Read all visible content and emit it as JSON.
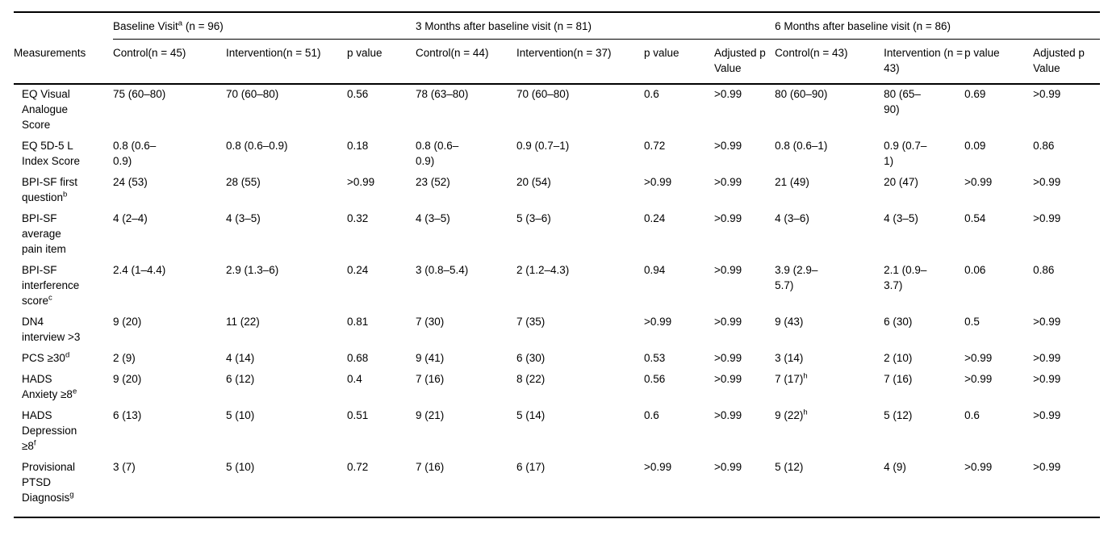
{
  "table": {
    "group_headers": [
      "Baseline Visit^a (n = 96)",
      "3 Months after baseline visit (n = 81)",
      "6 Months after baseline visit (n = 86)"
    ],
    "columns": [
      "Measurements",
      "Control(n = 45)",
      "Intervention(n = 51)",
      "p value",
      "Control(n = 44)",
      "Intervention(n = 37)",
      "p value",
      "Adjusted p Value",
      "Control(n = 43)",
      "Intervention (n = 43)",
      "p value",
      "Adjusted p Value"
    ],
    "rows": [
      {
        "measurement": "EQ Visual Analogue Score",
        "values": [
          "75 (60–80)",
          "70 (60–80)",
          "0.56",
          "78 (63–80)",
          "70 (60–80)",
          "0.6",
          ">0.99",
          "80 (60–90)",
          "80 (65–90)",
          "0.69",
          ">0.99"
        ]
      },
      {
        "measurement": "EQ 5D-5 L Index Score",
        "values": [
          "0.8 (0.6–0.9)",
          "0.8 (0.6–0.9)",
          "0.18",
          "0.8 (0.6–0.9)",
          "0.9 (0.7–1)",
          "0.72",
          ">0.99",
          "0.8 (0.6–1)",
          "0.9 (0.7–1)",
          "0.09",
          "0.86"
        ]
      },
      {
        "measurement": "BPI-SF first question^b",
        "values": [
          "24 (53)",
          "28 (55)",
          ">0.99",
          "23 (52)",
          "20 (54)",
          ">0.99",
          ">0.99",
          "21 (49)",
          "20 (47)",
          ">0.99",
          ">0.99"
        ]
      },
      {
        "measurement": "BPI-SF average pain item",
        "values": [
          "4 (2–4)",
          "4 (3–5)",
          "0.32",
          "4 (3–5)",
          "5 (3–6)",
          "0.24",
          ">0.99",
          "4 (3–6)",
          "4 (3–5)",
          "0.54",
          ">0.99"
        ]
      },
      {
        "measurement": "BPI-SF interference score^c",
        "values": [
          "2.4 (1–4.4)",
          "2.9 (1.3–6)",
          "0.24",
          "3 (0.8–5.4)",
          "2 (1.2–4.3)",
          "0.94",
          ">0.99",
          "3.9 (2.9–5.7)",
          "2.1 (0.9–3.7)",
          "0.06",
          "0.86"
        ]
      },
      {
        "measurement": "DN4 interview >3",
        "values": [
          "9 (20)",
          "11 (22)",
          "0.81",
          "7 (30)",
          "7 (35)",
          ">0.99",
          ">0.99",
          "9 (43)",
          "6 (30)",
          "0.5",
          ">0.99"
        ]
      },
      {
        "measurement": "PCS ≥30^d",
        "values": [
          "2 (9)",
          "4 (14)",
          "0.68",
          "9 (41)",
          "6 (30)",
          "0.53",
          ">0.99",
          "3 (14)",
          "2 (10)",
          ">0.99",
          ">0.99"
        ]
      },
      {
        "measurement": "HADS Anxiety ≥8^e",
        "values": [
          "9 (20)",
          "6 (12)",
          "0.4",
          "7 (16)",
          "8 (22)",
          "0.56",
          ">0.99",
          "7 (17)^h",
          "7 (16)",
          ">0.99",
          ">0.99"
        ]
      },
      {
        "measurement": "HADS Depression ≥8^f",
        "values": [
          "6 (13)",
          "5 (10)",
          "0.51",
          "9 (21)",
          "5 (14)",
          "0.6",
          ">0.99",
          "9 (22)^h",
          "5 (12)",
          "0.6",
          ">0.99"
        ]
      },
      {
        "measurement": "Provisional PTSD Diagnosis^g",
        "values": [
          "3 (7)",
          "5 (10)",
          "0.72",
          "7 (16)",
          "6 (17)",
          ">0.99",
          ">0.99",
          "5 (12)",
          "4 (9)",
          ">0.99",
          ">0.99"
        ]
      }
    ]
  }
}
